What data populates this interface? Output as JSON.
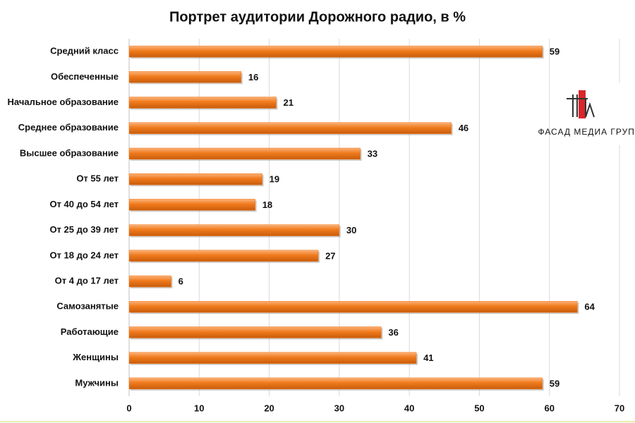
{
  "chart_data": {
    "type": "bar",
    "orientation": "horizontal",
    "title": "Портрет аудитории Дорожного радио, в %",
    "categories": [
      "Средний класс",
      "Обеспеченные",
      "Начальное образование",
      "Среднее образование",
      "Высшее образование",
      "От 55 лет",
      "От 40 до 54 лет",
      "От 25 до 39 лет",
      "От 18 до 24 лет",
      "От 4 до 17 лет",
      "Самозанятые",
      "Работающие",
      "Женщины",
      "Мужчины"
    ],
    "values": [
      59,
      16,
      21,
      46,
      33,
      19,
      18,
      30,
      27,
      6,
      64,
      36,
      41,
      59
    ],
    "color": "#f07a1c",
    "xlim": [
      0,
      70
    ],
    "xticks": [
      0,
      10,
      20,
      30,
      40,
      50,
      60,
      70
    ],
    "grid": true
  },
  "logo": "ФАСАД МЕДИА ГРУПП"
}
